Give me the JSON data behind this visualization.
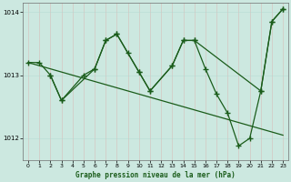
{
  "xlabel": "Graphe pression niveau de la mer (hPa)",
  "bg_color": "#cce8e0",
  "grid_color": "#b0d8d0",
  "line_color": "#1a5c1a",
  "ylim": [
    1011.65,
    1014.15
  ],
  "xlim": [
    -0.5,
    23.5
  ],
  "yticks": [
    1012,
    1013,
    1014
  ],
  "xticks": [
    0,
    1,
    2,
    3,
    4,
    5,
    6,
    7,
    8,
    9,
    10,
    11,
    12,
    13,
    14,
    15,
    16,
    17,
    18,
    19,
    20,
    21,
    22,
    23
  ],
  "series1_x": [
    0,
    1,
    2,
    3,
    6,
    7,
    8,
    10,
    11,
    13,
    14,
    15,
    21,
    22,
    23
  ],
  "series1_y": [
    1013.2,
    1013.2,
    1013.0,
    1012.6,
    1013.1,
    1013.55,
    1013.65,
    1013.05,
    1012.75,
    1013.15,
    1013.55,
    1013.55,
    1012.75,
    1013.85,
    1014.05
  ],
  "series2_x": [
    0,
    1,
    2,
    3,
    4,
    5,
    6,
    7,
    8,
    9,
    10,
    11,
    12,
    13,
    14,
    15,
    16,
    17,
    18,
    19,
    20,
    21,
    22,
    23
  ],
  "series2_y": [
    1013.2,
    1013.15,
    1013.1,
    1013.05,
    1013.0,
    1012.95,
    1012.9,
    1012.85,
    1012.8,
    1012.75,
    1012.7,
    1012.65,
    1012.6,
    1012.55,
    1012.5,
    1012.45,
    1012.4,
    1012.35,
    1012.3,
    1012.25,
    1012.2,
    1012.15,
    1012.1,
    1012.05
  ],
  "series3_x": [
    2,
    3,
    5,
    6,
    7,
    8,
    9,
    10,
    11,
    13,
    14,
    15,
    16,
    17,
    18,
    19,
    20,
    21,
    22,
    23
  ],
  "series3_y": [
    1013.0,
    1012.6,
    1013.0,
    1013.1,
    1013.55,
    1013.65,
    1013.35,
    1013.05,
    1012.75,
    1013.15,
    1013.55,
    1013.55,
    1013.1,
    1012.7,
    1012.4,
    1011.88,
    1012.0,
    1012.75,
    1013.85,
    1014.05
  ]
}
